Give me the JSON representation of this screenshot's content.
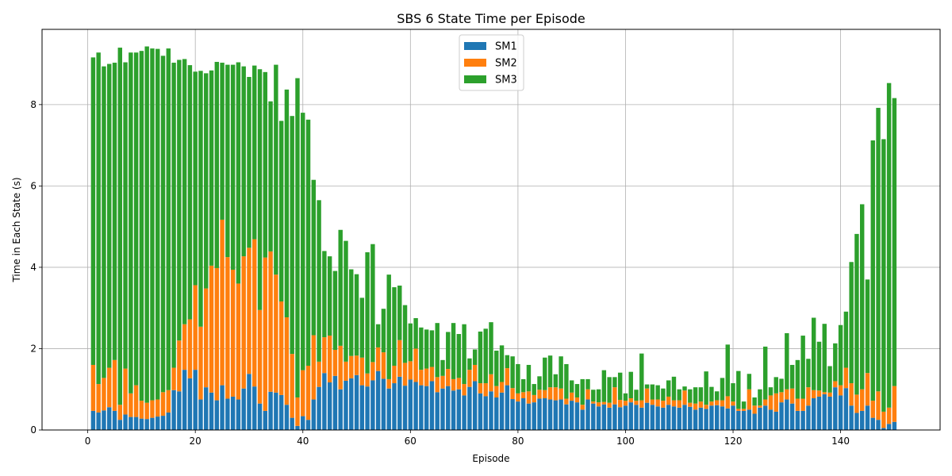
{
  "chart_data": {
    "type": "bar",
    "stacked": true,
    "title": "SBS 6 State Time per Episode",
    "xlabel": "Episode",
    "ylabel": "Time in Each State (s)",
    "xlim": [
      -8.5,
      158.5
    ],
    "ylim": [
      0,
      9.85
    ],
    "xticks": [
      0,
      20,
      40,
      60,
      80,
      100,
      120,
      140
    ],
    "yticks": [
      0,
      2,
      4,
      6,
      8
    ],
    "grid": true,
    "legend_position": "top-center",
    "x": [
      1,
      2,
      3,
      4,
      5,
      6,
      7,
      8,
      9,
      10,
      11,
      12,
      13,
      14,
      15,
      16,
      17,
      18,
      19,
      20,
      21,
      22,
      23,
      24,
      25,
      26,
      27,
      28,
      29,
      30,
      31,
      32,
      33,
      34,
      35,
      36,
      37,
      38,
      39,
      40,
      41,
      42,
      43,
      44,
      45,
      46,
      47,
      48,
      49,
      50,
      51,
      52,
      53,
      54,
      55,
      56,
      57,
      58,
      59,
      60,
      61,
      62,
      63,
      64,
      65,
      66,
      67,
      68,
      69,
      70,
      71,
      72,
      73,
      74,
      75,
      76,
      77,
      78,
      79,
      80,
      81,
      82,
      83,
      84,
      85,
      86,
      87,
      88,
      89,
      90,
      91,
      92,
      93,
      94,
      95,
      96,
      97,
      98,
      99,
      100,
      101,
      102,
      103,
      104,
      105,
      106,
      107,
      108,
      109,
      110,
      111,
      112,
      113,
      114,
      115,
      116,
      117,
      118,
      119,
      120,
      121,
      122,
      123,
      124,
      125,
      126,
      127,
      128,
      129,
      130,
      131,
      132,
      133,
      134,
      135,
      136,
      137,
      138,
      139,
      140,
      141,
      142,
      143,
      144,
      145,
      146,
      147,
      148,
      149,
      150
    ],
    "series": [
      {
        "name": "SM1",
        "color": "#1f77b4",
        "values": [
          0.47,
          0.43,
          0.48,
          0.56,
          0.47,
          0.25,
          0.38,
          0.32,
          0.32,
          0.28,
          0.27,
          0.3,
          0.33,
          0.35,
          0.43,
          0.98,
          0.95,
          1.48,
          1.27,
          1.48,
          0.75,
          1.05,
          0.92,
          0.73,
          1.1,
          0.77,
          0.82,
          0.75,
          1.02,
          1.38,
          1.07,
          0.65,
          0.47,
          0.94,
          0.92,
          0.86,
          0.62,
          0.3,
          0.1,
          0.34,
          0.25,
          0.75,
          1.06,
          1.4,
          1.17,
          1.33,
          1.0,
          1.21,
          1.27,
          1.35,
          1.1,
          1.07,
          1.22,
          1.45,
          1.26,
          1.02,
          1.15,
          1.31,
          1.09,
          1.24,
          1.18,
          1.1,
          1.08,
          1.2,
          0.93,
          1.02,
          1.08,
          0.97,
          1.0,
          0.85,
          1.06,
          1.2,
          0.9,
          0.83,
          0.95,
          0.8,
          0.92,
          1.1,
          0.76,
          0.7,
          0.78,
          0.65,
          0.68,
          0.77,
          0.78,
          0.75,
          0.73,
          0.75,
          0.63,
          0.72,
          0.68,
          0.5,
          0.75,
          0.65,
          0.58,
          0.63,
          0.55,
          0.63,
          0.56,
          0.6,
          0.68,
          0.62,
          0.55,
          0.67,
          0.62,
          0.58,
          0.55,
          0.62,
          0.58,
          0.55,
          0.62,
          0.57,
          0.5,
          0.55,
          0.52,
          0.6,
          0.61,
          0.58,
          0.53,
          0.6,
          0.47,
          0.47,
          0.5,
          0.4,
          0.55,
          0.6,
          0.5,
          0.45,
          0.68,
          0.75,
          0.65,
          0.47,
          0.47,
          0.6,
          0.78,
          0.82,
          0.88,
          0.82,
          1.05,
          0.85,
          1.03,
          0.6,
          0.42,
          0.47,
          0.6,
          0.3,
          0.25,
          0.05,
          0.15,
          0.2
        ]
      },
      {
        "name": "SM2",
        "color": "#ff7f0e",
        "values": [
          1.13,
          0.7,
          0.8,
          0.97,
          1.25,
          0.37,
          1.13,
          0.58,
          0.78,
          0.44,
          0.4,
          0.43,
          0.42,
          0.58,
          0.55,
          0.55,
          1.25,
          1.12,
          1.45,
          2.08,
          1.79,
          2.43,
          3.12,
          3.25,
          4.07,
          3.48,
          3.12,
          2.85,
          3.25,
          3.1,
          3.62,
          2.3,
          3.77,
          3.45,
          2.9,
          2.3,
          2.15,
          1.57,
          0.7,
          1.13,
          1.33,
          1.58,
          0.62,
          0.88,
          1.15,
          0.64,
          1.07,
          0.47,
          0.55,
          0.48,
          0.68,
          0.32,
          0.45,
          0.58,
          0.65,
          0.23,
          0.43,
          0.9,
          0.56,
          0.45,
          0.82,
          0.38,
          0.43,
          0.35,
          0.37,
          0.31,
          0.42,
          0.28,
          0.28,
          0.28,
          0.42,
          0.4,
          0.25,
          0.32,
          0.42,
          0.28,
          0.26,
          0.42,
          0.27,
          0.2,
          0.15,
          0.3,
          0.18,
          0.22,
          0.2,
          0.3,
          0.32,
          0.27,
          0.14,
          0.2,
          0.12,
          0.12,
          0.25,
          0.05,
          0.1,
          0.06,
          0.12,
          0.42,
          0.18,
          0.12,
          0.1,
          0.1,
          0.18,
          0.35,
          0.13,
          0.17,
          0.17,
          0.2,
          0.15,
          0.18,
          0.35,
          0.1,
          0.15,
          0.15,
          0.1,
          0.1,
          0.12,
          0.15,
          0.3,
          0.1,
          0.05,
          0.05,
          0.5,
          0.2,
          0.05,
          0.15,
          0.35,
          0.45,
          0.25,
          0.25,
          0.37,
          0.3,
          0.3,
          0.45,
          0.2,
          0.15,
          0.05,
          0.1,
          0.15,
          0.25,
          0.5,
          0.55,
          0.45,
          0.53,
          0.8,
          0.42,
          0.7,
          0.4,
          0.4,
          0.88
        ]
      },
      {
        "name": "SM3",
        "color": "#2ca02c",
        "values": [
          7.56,
          8.15,
          7.66,
          7.47,
          7.31,
          8.78,
          7.53,
          8.38,
          8.18,
          8.6,
          8.76,
          8.65,
          8.62,
          8.27,
          8.4,
          7.5,
          6.9,
          6.52,
          6.25,
          5.25,
          6.29,
          5.29,
          4.8,
          5.07,
          3.86,
          4.73,
          5.04,
          5.44,
          4.67,
          4.2,
          4.27,
          5.92,
          4.56,
          3.69,
          5.16,
          4.44,
          5.6,
          5.85,
          7.85,
          6.33,
          6.05,
          3.82,
          3.97,
          2.12,
          1.95,
          1.94,
          2.85,
          2.97,
          2.13,
          2.0,
          1.47,
          2.98,
          2.9,
          0.57,
          1.07,
          2.57,
          1.93,
          1.34,
          1.42,
          0.93,
          0.75,
          1.04,
          0.96,
          0.9,
          1.33,
          0.39,
          0.91,
          1.38,
          1.08,
          1.47,
          0.28,
          0.38,
          1.27,
          1.34,
          1.28,
          0.87,
          0.9,
          0.32,
          0.78,
          0.72,
          0.32,
          0.65,
          0.27,
          0.33,
          0.8,
          0.78,
          0.32,
          0.79,
          0.85,
          0.3,
          0.33,
          0.63,
          0.25,
          0.29,
          0.32,
          0.78,
          0.63,
          0.25,
          0.67,
          0.18,
          0.65,
          0.27,
          1.15,
          0.1,
          0.37,
          0.35,
          0.3,
          0.4,
          0.58,
          0.27,
          0.1,
          0.33,
          0.4,
          0.35,
          0.82,
          0.36,
          0.22,
          0.55,
          1.27,
          0.45,
          0.93,
          0.18,
          0.38,
          0.2,
          0.4,
          1.3,
          0.2,
          0.4,
          0.33,
          1.38,
          0.58,
          0.95,
          1.55,
          0.7,
          1.78,
          1.2,
          1.68,
          0.65,
          0.93,
          1.48,
          1.38,
          2.98,
          3.95,
          4.55,
          2.3,
          6.4,
          6.97,
          6.7,
          7.98,
          7.08
        ]
      }
    ]
  }
}
